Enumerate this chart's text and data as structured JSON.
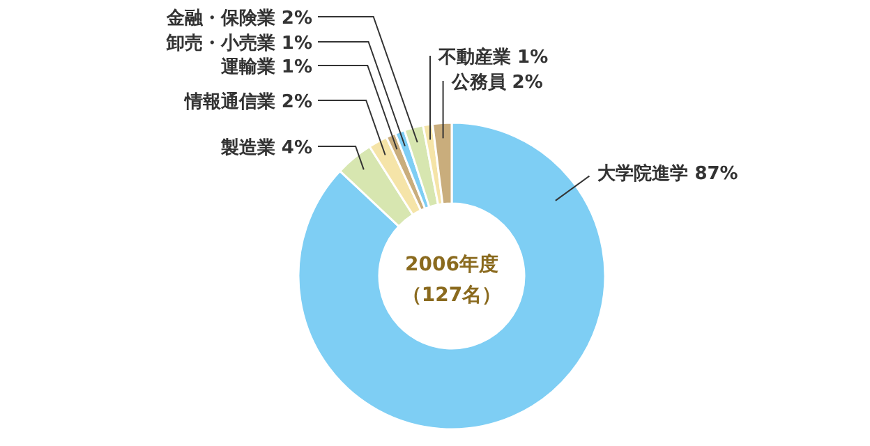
{
  "chart_data": {
    "type": "donut",
    "title": "2006年度",
    "subtitle": "（127名）",
    "categories": [
      "大学院進学",
      "製造業",
      "情報通信業",
      "運輸業",
      "卸売・小売業",
      "金融・保険業",
      "不動産業",
      "公務員"
    ],
    "values": [
      87,
      4,
      2,
      1,
      1,
      2,
      1,
      2
    ],
    "value_labels": [
      "87%",
      "4%",
      "2%",
      "1%",
      "1%",
      "2%",
      "1%",
      "2%"
    ],
    "colors": [
      "#7ecef4",
      "#d7e6b0",
      "#f5e4a8",
      "#c9ad7c",
      "#7ecef4",
      "#d7e6b0",
      "#f5e4a8",
      "#c9ad7c"
    ]
  }
}
